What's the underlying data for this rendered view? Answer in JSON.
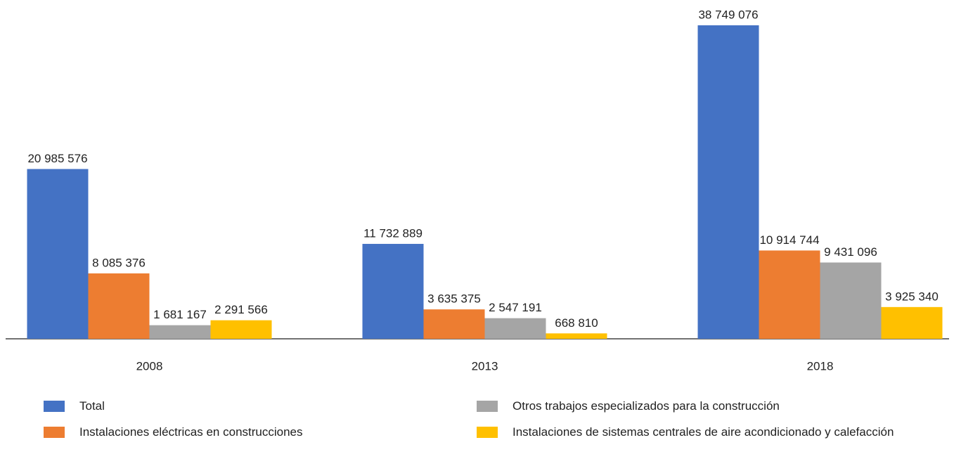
{
  "chart_data": {
    "type": "bar",
    "categories": [
      "2008",
      "2013",
      "2018"
    ],
    "series": [
      {
        "name": "Total",
        "color": "#4472c4",
        "values": [
          20985576,
          11732889,
          38749076
        ],
        "value_labels": [
          "20 985 576",
          "11 732 889",
          "38 749 076"
        ]
      },
      {
        "name": "Instalaciones eléctricas en construcciones",
        "color": "#ed7d31",
        "values": [
          8085376,
          3635375,
          10914744
        ],
        "value_labels": [
          "8 085 376",
          "3 635 375",
          "10 914 744"
        ]
      },
      {
        "name": "Otros trabajos especializados para la construcción",
        "color": "#a5a5a5",
        "values": [
          1681167,
          2547191,
          9431096
        ],
        "value_labels": [
          "1 681 167",
          "2 547 191",
          "9 431 096"
        ]
      },
      {
        "name": "Instalaciones de sistemas centrales de aire acondicionado y calefacción",
        "color": "#ffc000",
        "values": [
          2291566,
          668810,
          3925340
        ],
        "value_labels": [
          "2 291 566",
          "668 810",
          "3 925 340"
        ]
      }
    ]
  }
}
